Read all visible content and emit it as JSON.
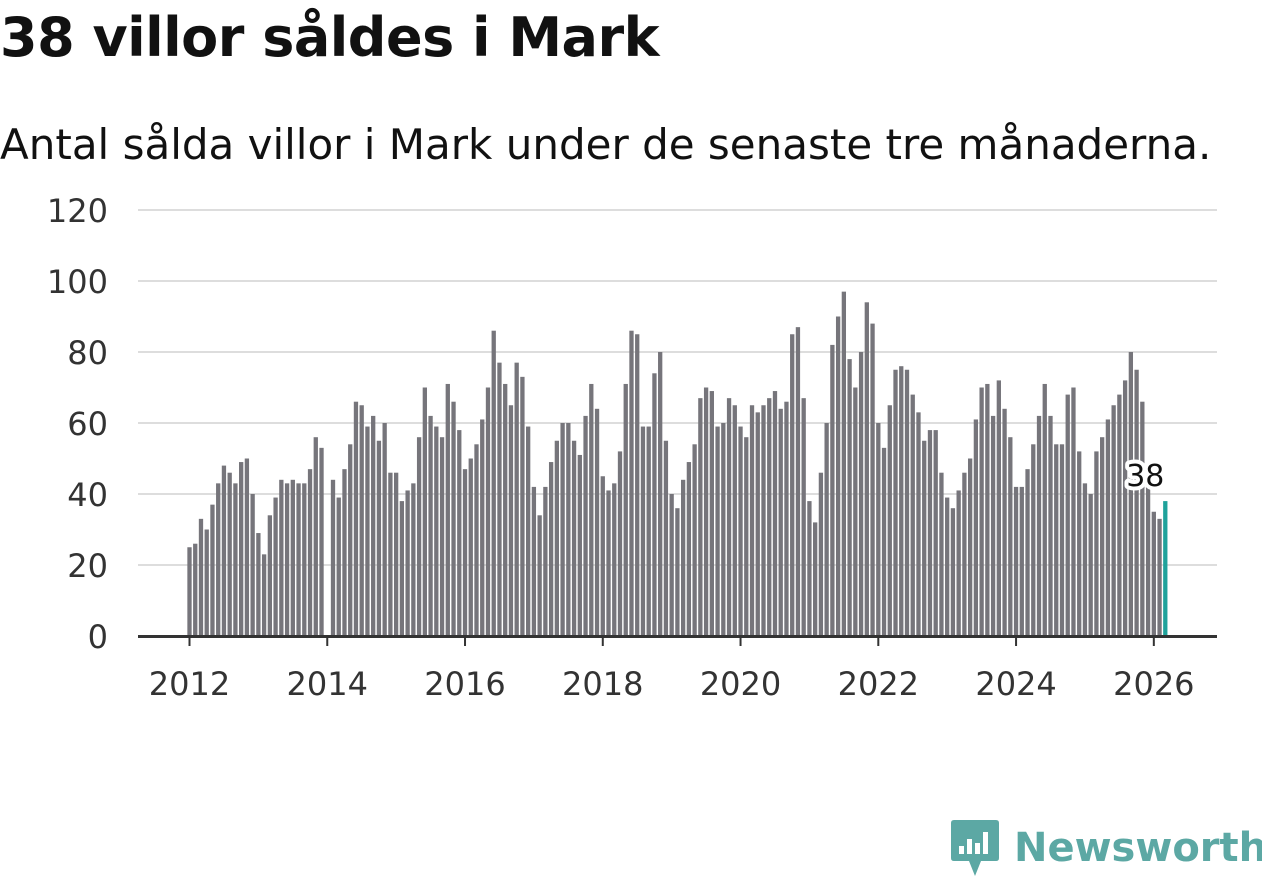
{
  "title": "38 villor såldes i Mark",
  "subtitle": "Antal sålda villor i Mark under de senaste tre månaderna.",
  "brand": {
    "name": "Newsworthy",
    "icon": "newsworthy-logo-icon",
    "color": "#5ca8a4"
  },
  "colors": {
    "bar": "#76757b",
    "highlight": "#1fa29b",
    "grid": "#dddddd",
    "axis": "#333333"
  },
  "chart_data": {
    "type": "bar",
    "title": "38 villor såldes i Mark",
    "xlabel": "",
    "ylabel": "",
    "ylim": [
      0,
      120
    ],
    "yticks": [
      0,
      20,
      40,
      60,
      80,
      100,
      120
    ],
    "xticks": [
      "2012",
      "2014",
      "2016",
      "2018",
      "2020",
      "2022",
      "2024",
      "2026"
    ],
    "start": "2012-01",
    "grid": true,
    "series": [
      {
        "name": "Antal sålda villor (rullande tre månader)",
        "values": [
          25,
          26,
          33,
          30,
          37,
          43,
          48,
          46,
          43,
          49,
          50,
          40,
          29,
          23,
          34,
          39,
          44,
          43,
          44,
          43,
          43,
          47,
          56,
          53,
          0,
          44,
          39,
          47,
          54,
          66,
          65,
          59,
          62,
          55,
          60,
          46,
          46,
          38,
          41,
          43,
          56,
          70,
          62,
          59,
          56,
          71,
          66,
          58,
          47,
          50,
          54,
          61,
          70,
          86,
          77,
          71,
          65,
          77,
          73,
          59,
          42,
          34,
          42,
          49,
          55,
          60,
          60,
          55,
          51,
          62,
          71,
          64,
          45,
          41,
          43,
          52,
          71,
          86,
          85,
          59,
          59,
          74,
          80,
          55,
          40,
          36,
          44,
          49,
          54,
          67,
          70,
          69,
          59,
          60,
          67,
          65,
          59,
          56,
          65,
          63,
          65,
          67,
          69,
          64,
          66,
          85,
          87,
          67,
          38,
          32,
          46,
          60,
          82,
          90,
          97,
          78,
          70,
          80,
          94,
          88,
          60,
          53,
          65,
          75,
          76,
          75,
          68,
          63,
          55,
          58,
          58,
          46,
          39,
          36,
          41,
          46,
          50,
          61,
          70,
          71,
          62,
          72,
          64,
          56,
          42,
          42,
          47,
          54,
          62,
          71,
          62,
          54,
          54,
          68,
          70,
          52,
          43,
          40,
          52,
          56,
          61,
          65,
          68,
          72,
          80,
          75,
          66,
          42,
          35,
          33,
          38
        ]
      }
    ],
    "highlight": {
      "label": "38",
      "value": 38
    }
  }
}
